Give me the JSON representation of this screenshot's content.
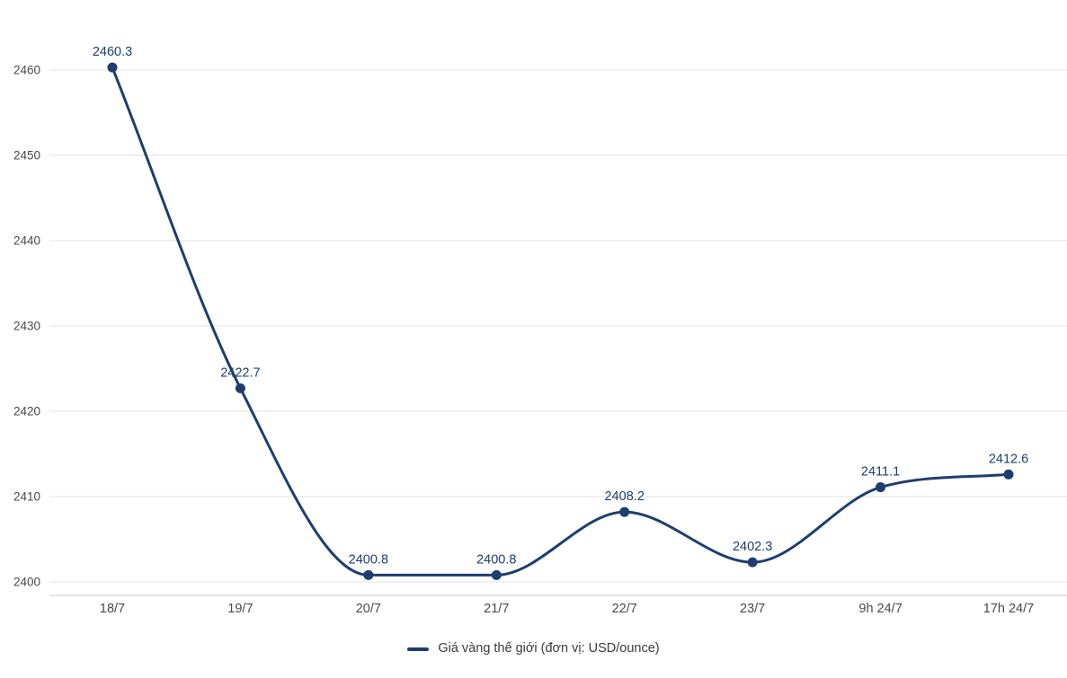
{
  "chart_data": {
    "type": "line",
    "title": "",
    "legend": "Giá vàng thế giới (đơn vị: USD/ounce)",
    "categories": [
      "18/7",
      "19/7",
      "20/7",
      "21/7",
      "22/7",
      "23/7",
      "9h 24/7",
      "17h 24/7"
    ],
    "values": [
      2460.3,
      2422.7,
      2400.8,
      2400.8,
      2408.2,
      2402.3,
      2411.1,
      2412.6
    ],
    "point_labels": [
      "2460.3",
      "2422.7",
      "2400.8",
      "2400.8",
      "2408.2",
      "2402.3",
      "2411.1",
      "2412.6"
    ],
    "y_ticks": [
      2400,
      2410,
      2420,
      2430,
      2440,
      2450,
      2460
    ],
    "ylim": [
      2400,
      2460
    ],
    "grid": true,
    "legend_position": "bottom",
    "smooth": true,
    "colors": {
      "line": "#1d3e6e",
      "point": "#1d3e6e",
      "value_label": "#1d3e6e",
      "tick_label": "#4a4a4a",
      "grid": "#e3e3e3",
      "axis": "#cfcfcf",
      "background": "#ffffff"
    }
  }
}
